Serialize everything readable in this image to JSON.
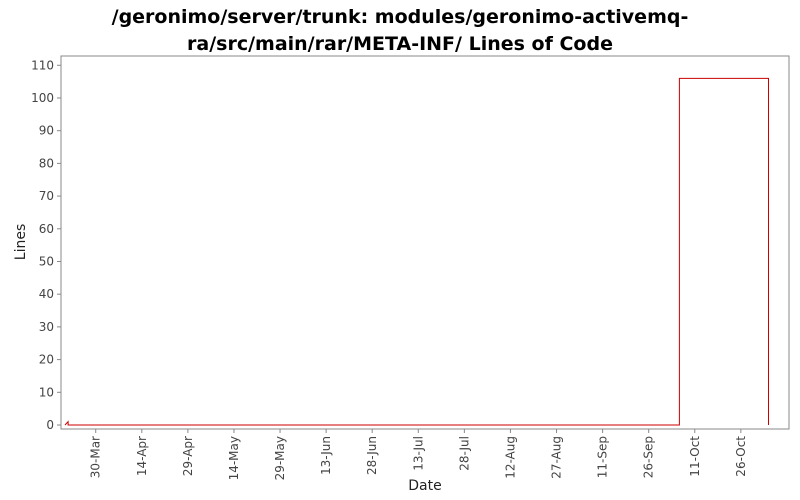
{
  "chart_data": {
    "type": "area",
    "title": "/geronimo/server/trunk: modules/geronimo-activemq-ra/src/main/rar/META-INF/ Lines of Code",
    "title_lines": [
      "/geronimo/server/trunk: modules/geronimo-activemq-",
      "ra/src/main/rar/META-INF/ Lines of Code"
    ],
    "xlabel": "Date",
    "ylabel": "Lines",
    "x_ticks": [
      "30-Mar",
      "14-Apr",
      "29-Apr",
      "14-May",
      "29-May",
      "13-Jun",
      "28-Jun",
      "13-Jul",
      "28-Jul",
      "12-Aug",
      "27-Aug",
      "11-Sep",
      "26-Sep",
      "11-Oct",
      "26-Oct"
    ],
    "y_ticks": [
      0,
      10,
      20,
      30,
      40,
      50,
      60,
      70,
      80,
      90,
      100,
      110
    ],
    "ylim": [
      0,
      111
    ],
    "xlim": [
      "2006-03-20",
      "2006-11-11"
    ],
    "series": [
      {
        "color": "#cc0000",
        "points": [
          {
            "x": "2006-03-20",
            "y": 0
          },
          {
            "x": "2006-03-21",
            "y": 1
          },
          {
            "x": "2006-03-21",
            "y": 0
          },
          {
            "x": "2006-10-06",
            "y": 0
          },
          {
            "x": "2006-10-06",
            "y": 106
          },
          {
            "x": "2006-11-04",
            "y": 106
          },
          {
            "x": "2006-11-04",
            "y": 0
          }
        ]
      }
    ],
    "grid": false
  }
}
